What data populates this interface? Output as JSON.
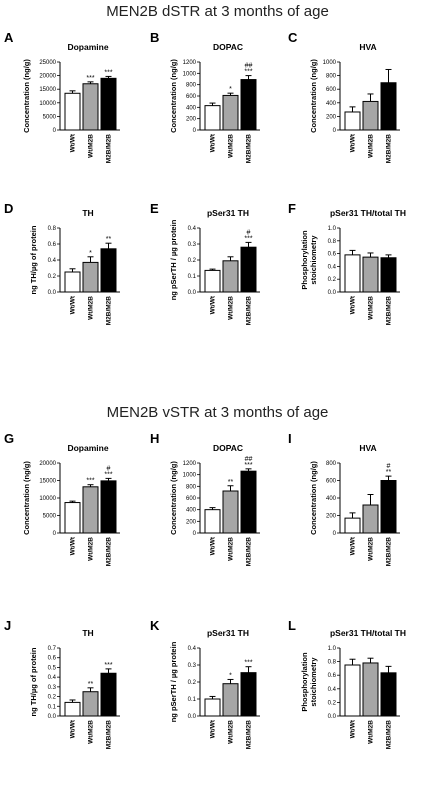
{
  "titles": {
    "top": "MEN2B dSTR at 3 months of age",
    "bottom": "MEN2B vSTR at 3 months of age"
  },
  "colors": [
    "#ffffff",
    "#a6a6a6",
    "#000000"
  ],
  "chart_data": [
    {
      "label": "A",
      "type": "bar",
      "title": "Dopamine",
      "ylabel": "Concentration (ng/g)",
      "categories": [
        "Wt/Wt",
        "Wt/M2B",
        "M2B/M2B"
      ],
      "values": [
        13500,
        17000,
        19000
      ],
      "errors": [
        900,
        700,
        700
      ],
      "sig": [
        "",
        "***",
        "***"
      ],
      "ylim": [
        0,
        25000
      ],
      "yticks": [
        0,
        5000,
        10000,
        15000,
        20000,
        25000
      ]
    },
    {
      "label": "B",
      "type": "bar",
      "title": "DOPAC",
      "ylabel": "Concentration (ng/g)",
      "categories": [
        "Wt/Wt",
        "Wt/M2B",
        "M2B/M2B"
      ],
      "values": [
        430,
        610,
        890
      ],
      "errors": [
        45,
        40,
        70
      ],
      "sig": [
        "",
        "*",
        "##\n***"
      ],
      "ylim": [
        0,
        1200
      ],
      "yticks": [
        0,
        200,
        400,
        600,
        800,
        1000,
        1200
      ]
    },
    {
      "label": "C",
      "type": "bar",
      "title": "HVA",
      "ylabel": "Concentration (ng/g)",
      "categories": [
        "Wt/Wt",
        "Wt/M2B",
        "M2B/M2B"
      ],
      "values": [
        265,
        420,
        695
      ],
      "errors": [
        75,
        110,
        195
      ],
      "sig": [
        "",
        "",
        ""
      ],
      "ylim": [
        0,
        1000
      ],
      "yticks": [
        0,
        200,
        400,
        600,
        800,
        1000
      ]
    },
    {
      "label": "D",
      "type": "bar",
      "title": "TH",
      "ylabel": "ng TH/µg of protein",
      "categories": [
        "Wt/Wt",
        "Wt/M2B",
        "M2B/M2B"
      ],
      "values": [
        0.25,
        0.37,
        0.54
      ],
      "errors": [
        0.04,
        0.07,
        0.07
      ],
      "sig": [
        "",
        "*",
        "**"
      ],
      "ylim": [
        0,
        0.8
      ],
      "yticks": [
        "0.0",
        "0.2",
        "0.4",
        "0.6",
        "0.8"
      ]
    },
    {
      "label": "E",
      "type": "bar",
      "title": "pSer31 TH",
      "ylabel": "ng pSerTH / µg protein",
      "categories": [
        "Wt/Wt",
        "Wt/M2B",
        "M2B/M2B"
      ],
      "values": [
        0.135,
        0.195,
        0.28
      ],
      "errors": [
        0.008,
        0.025,
        0.03
      ],
      "sig": [
        "",
        "",
        "#\n***"
      ],
      "ylim": [
        0,
        0.4
      ],
      "yticks": [
        "0.0",
        "0.1",
        "0.2",
        "0.3",
        "0.4"
      ]
    },
    {
      "label": "F",
      "type": "bar",
      "title": "pSer31 TH/total TH",
      "ylabel": "Phosphorylation\nstoichiometry",
      "categories": [
        "Wt/Wt",
        "Wt/M2B",
        "M2B/M2B"
      ],
      "values": [
        0.58,
        0.545,
        0.535
      ],
      "errors": [
        0.07,
        0.065,
        0.045
      ],
      "sig": [
        "",
        "",
        ""
      ],
      "ylim": [
        0,
        1.0
      ],
      "yticks": [
        "0.0",
        "0.2",
        "0.4",
        "0.6",
        "0.8",
        "1.0"
      ]
    },
    {
      "label": "G",
      "type": "bar",
      "title": "Dopamine",
      "ylabel": "Concentration (ng/g)",
      "categories": [
        "Wt/Wt",
        "Wt/M2B",
        "M2B/M2B"
      ],
      "values": [
        8700,
        13200,
        14900
      ],
      "errors": [
        400,
        600,
        700
      ],
      "sig": [
        "",
        "***",
        "#\n***"
      ],
      "ylim": [
        0,
        20000
      ],
      "yticks": [
        0,
        5000,
        10000,
        15000,
        20000
      ]
    },
    {
      "label": "H",
      "type": "bar",
      "title": "DOPAC",
      "ylabel": "Concentration (ng/g)",
      "categories": [
        "Wt/Wt",
        "Wt/M2B",
        "M2B/M2B"
      ],
      "values": [
        400,
        720,
        1060
      ],
      "errors": [
        35,
        90,
        40
      ],
      "sig": [
        "",
        "**",
        "##\n***"
      ],
      "ylim": [
        0,
        1200
      ],
      "yticks": [
        0,
        200,
        400,
        600,
        800,
        1000,
        1200
      ]
    },
    {
      "label": "I",
      "type": "bar",
      "title": "HVA",
      "ylabel": "Concentration (ng/g)",
      "categories": [
        "Wt/Wt",
        "Wt/M2B",
        "M2B/M2B"
      ],
      "values": [
        170,
        320,
        600
      ],
      "errors": [
        60,
        120,
        50
      ],
      "sig": [
        "",
        "",
        "#\n**"
      ],
      "ylim": [
        0,
        800
      ],
      "yticks": [
        0,
        200,
        400,
        600,
        800
      ]
    },
    {
      "label": "J",
      "type": "bar",
      "title": "TH",
      "ylabel": "ng TH/µg of protein",
      "categories": [
        "Wt/Wt",
        "Wt/M2B",
        "M2B/M2B"
      ],
      "values": [
        0.14,
        0.25,
        0.44
      ],
      "errors": [
        0.025,
        0.04,
        0.045
      ],
      "sig": [
        "",
        "**",
        "***"
      ],
      "ylim": [
        0,
        0.7
      ],
      "yticks": [
        "0.0",
        "0.1",
        "0.2",
        "0.3",
        "0.4",
        "0.5",
        "0.6",
        "0.7"
      ]
    },
    {
      "label": "K",
      "type": "bar",
      "title": "pSer31 TH",
      "ylabel": "ng pSerTH / µg protein",
      "categories": [
        "Wt/Wt",
        "Wt/M2B",
        "M2B/M2B"
      ],
      "values": [
        0.1,
        0.19,
        0.255
      ],
      "errors": [
        0.015,
        0.025,
        0.035
      ],
      "sig": [
        "",
        "*",
        "***"
      ],
      "ylim": [
        0,
        0.4
      ],
      "yticks": [
        "0.0",
        "0.1",
        "0.2",
        "0.3",
        "0.4"
      ]
    },
    {
      "label": "L",
      "type": "bar",
      "title": "pSer31 TH/total TH",
      "ylabel": "Phosphorylation\nstoichiometry",
      "categories": [
        "Wt/Wt",
        "Wt/M2B",
        "M2B/M2B"
      ],
      "values": [
        0.75,
        0.78,
        0.635
      ],
      "errors": [
        0.085,
        0.07,
        0.095
      ],
      "sig": [
        "",
        "",
        ""
      ],
      "ylim": [
        0,
        1.0
      ],
      "yticks": [
        "0.0",
        "0.2",
        "0.4",
        "0.6",
        "0.8",
        "1.0"
      ]
    }
  ]
}
